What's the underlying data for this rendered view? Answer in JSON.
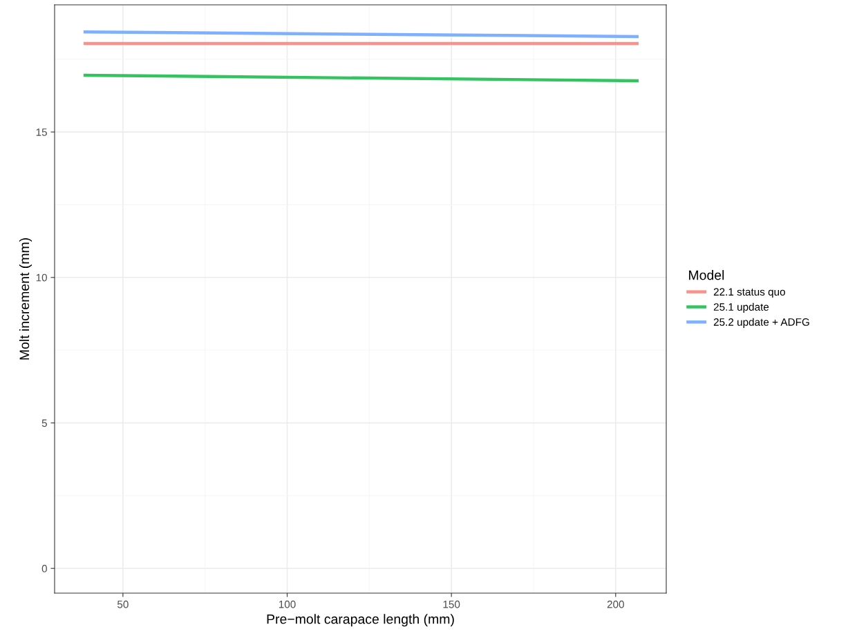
{
  "chart_data": {
    "type": "line",
    "xlabel": "Pre−molt carapace length (mm)",
    "ylabel": "Molt increment (mm)",
    "legend_title": "Model",
    "x": [
      38,
      207
    ],
    "series": [
      {
        "name": "22.1 status quo",
        "color": "#f8928b",
        "values": [
          18.04,
          18.04
        ]
      },
      {
        "name": "25.1 update",
        "color": "#33c35f",
        "values": [
          16.95,
          16.76
        ]
      },
      {
        "name": "25.2 update + ADFG",
        "color": "#7fb0ff",
        "values": [
          18.44,
          18.28
        ]
      }
    ],
    "xlim": [
      29.2,
      215.4
    ],
    "xticks": [
      50,
      100,
      150,
      200
    ],
    "ylim": [
      -0.85,
      19.37
    ],
    "yticks": [
      0,
      5,
      10,
      15
    ],
    "grid": true,
    "legend": "right",
    "marker": "none",
    "line_style": "solid"
  }
}
